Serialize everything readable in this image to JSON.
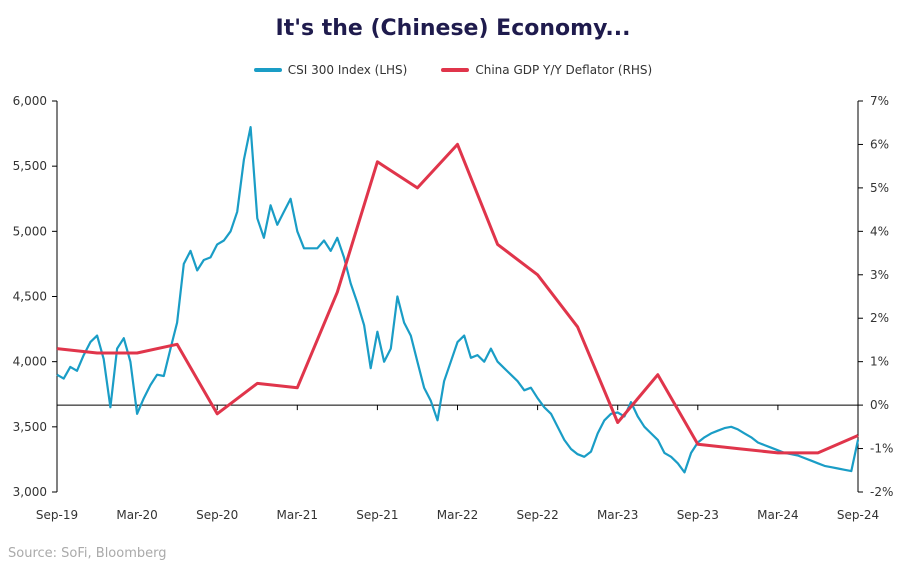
{
  "chart_data": {
    "type": "line",
    "title": "It's the (Chinese) Economy...",
    "x_labels": [
      "Sep-19",
      "Mar-20",
      "Sep-20",
      "Mar-21",
      "Sep-21",
      "Mar-22",
      "Sep-22",
      "Mar-23",
      "Sep-23",
      "Mar-24",
      "Sep-24"
    ],
    "y_left": {
      "ylim": [
        3000,
        6000
      ],
      "ticks": [
        "3,000",
        "3,500",
        "4,000",
        "4,500",
        "5,000",
        "5,500",
        "6,000"
      ]
    },
    "y_right": {
      "ylim": [
        -2,
        7
      ],
      "ticks": [
        "-2%",
        "-1%",
        "0%",
        "1%",
        "2%",
        "3%",
        "4%",
        "5%",
        "6%",
        "7%"
      ]
    },
    "legend_placement": "top-center",
    "series": [
      {
        "name": "CSI 300 Index (LHS)",
        "axis": "left",
        "color": "#1a9dc6",
        "x": [
          0,
          0.5,
          1,
          1.5,
          2,
          2.5,
          3,
          3.5,
          4,
          4.5,
          5,
          5.5,
          6,
          6.5,
          7,
          7.5,
          8,
          8.5,
          9,
          9.5,
          10,
          10.5,
          11,
          11.5,
          12,
          12.5,
          13,
          13.5,
          14,
          14.5,
          15,
          15.5,
          16,
          16.5,
          17,
          17.5,
          18,
          18.5,
          19,
          19.5,
          20,
          20.5,
          21,
          21.5,
          22,
          22.5,
          23,
          23.5,
          24,
          24.5,
          25,
          25.5,
          26,
          26.5,
          27,
          27.5,
          28,
          28.5,
          29,
          29.5,
          30,
          30.5,
          31,
          31.5,
          32,
          32.5,
          33,
          33.5,
          34,
          34.5,
          35,
          35.5,
          36,
          36.5,
          37,
          37.5,
          38,
          38.5,
          39,
          39.5,
          40,
          40.5,
          41,
          41.5,
          42,
          42.5,
          43,
          43.5,
          44,
          44.5,
          45,
          45.5,
          46,
          46.5,
          47,
          47.5,
          48,
          48.5,
          49,
          49.5,
          50,
          50.5,
          51,
          51.5,
          52,
          52.5,
          53,
          53.5,
          54,
          54.5,
          55,
          55.5,
          56,
          56.5,
          57,
          57.5,
          58,
          58.5,
          59,
          59.5,
          60
        ],
        "values": [
          3900,
          3870,
          3960,
          3930,
          4050,
          4150,
          4200,
          4020,
          3650,
          4100,
          4180,
          4000,
          3600,
          3720,
          3820,
          3900,
          3890,
          4100,
          4300,
          4750,
          4850,
          4700,
          4780,
          4800,
          4900,
          4930,
          5000,
          5150,
          5550,
          5800,
          5100,
          4950,
          5200,
          5050,
          5150,
          5250,
          5000,
          4870,
          4870,
          4870,
          4930,
          4850,
          4950,
          4800,
          4600,
          4450,
          4280,
          3950,
          4230,
          4000,
          4100,
          4500,
          4300,
          4200,
          4000,
          3800,
          3700,
          3550,
          3850,
          4000,
          4150,
          4200,
          4030,
          4050,
          4000,
          4100,
          4000,
          3950,
          3900,
          3850,
          3780,
          3800,
          3720,
          3650,
          3600,
          3500,
          3400,
          3330,
          3290,
          3270,
          3310,
          3450,
          3550,
          3600,
          3610,
          3580,
          3690,
          3580,
          3500,
          3450,
          3400,
          3300,
          3270,
          3220,
          3150,
          3300,
          3380,
          3420,
          3450,
          3470,
          3490,
          3500,
          3480,
          3450,
          3420,
          3380,
          3360,
          3340,
          3320,
          3300,
          3290,
          3280,
          3260,
          3240,
          3220,
          3200,
          3190,
          3180,
          3170,
          3160,
          3400
        ]
      },
      {
        "name": "China GDP Y/Y Deflator (RHS)",
        "axis": "right",
        "color": "#e0354b",
        "x": [
          0,
          1,
          2,
          3,
          4,
          5,
          6,
          7,
          8,
          9,
          10,
          11,
          12,
          13,
          14,
          15,
          16,
          17,
          18,
          19,
          20
        ],
        "values": [
          1.3,
          1.2,
          1.2,
          1.4,
          -0.2,
          0.5,
          0.4,
          2.6,
          5.6,
          5.0,
          6.0,
          3.7,
          3.0,
          1.8,
          -0.4,
          0.7,
          -0.9,
          -1.0,
          -1.1,
          -1.1,
          -0.7
        ]
      }
    ]
  },
  "source": "Source: SoFi, Bloomberg"
}
